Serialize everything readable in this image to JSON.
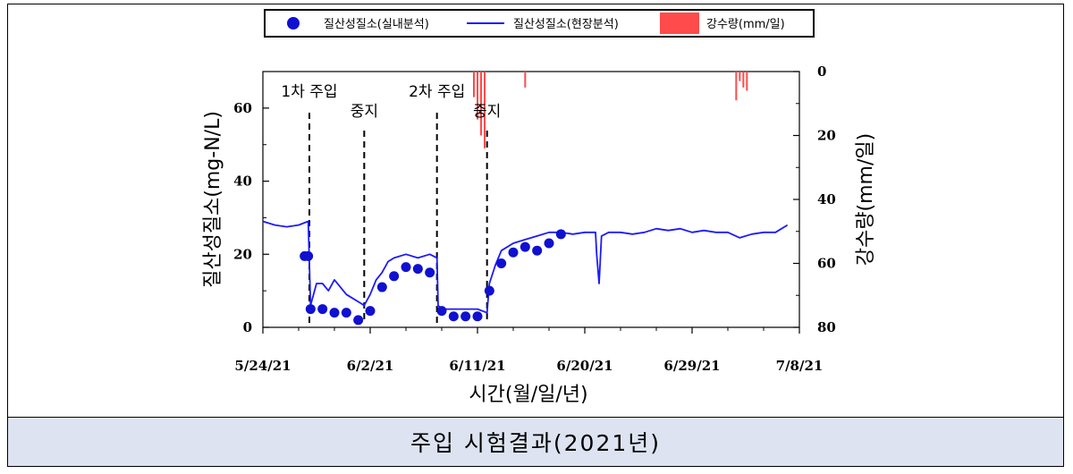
{
  "caption": "주입 시험결과(2021년)",
  "chart_data": {
    "type": "line",
    "xlabel": "시간(월/일/년)",
    "ylabel_left": "질산성질소(mg-N/L)",
    "ylabel_right": "강수량(mm/일)",
    "x_tick_labels": [
      "5/24/21",
      "6/2/21",
      "6/11/21",
      "6/20/21",
      "6/29/21",
      "7/8/21"
    ],
    "x_tick_days": [
      0,
      9,
      18,
      27,
      36,
      45
    ],
    "xlim_days": [
      0,
      45
    ],
    "ylim_left": [
      0,
      70
    ],
    "yticks_left": [
      "0",
      "20",
      "40",
      "60"
    ],
    "ylim_right": [
      0,
      80
    ],
    "yticks_right": [
      "0",
      "20",
      "40",
      "60",
      "80"
    ],
    "right_axis_inverted": true,
    "legend": {
      "placement": "top",
      "items": [
        {
          "label": "질산성질소(실내분석)",
          "marker": "circle",
          "color": "#1010d0"
        },
        {
          "label": "질산성질소(현장분석)",
          "marker": "line",
          "color": "#1a1aff"
        },
        {
          "label": "강수량(mm/일)",
          "marker": "bar",
          "color": "#ff4b4b"
        }
      ]
    },
    "annotations": [
      {
        "text": "1차 주입",
        "x_day": 3.9
      },
      {
        "text": "중지",
        "x_day": 8.5
      },
      {
        "text": "2차 주입",
        "x_day": 14.6
      },
      {
        "text": "중지",
        "x_day": 18.8
      }
    ],
    "series": [
      {
        "name": "질산성질소(실내분석)",
        "marker": "circle",
        "color": "#1010d0",
        "x_days": [
          3.5,
          3.8,
          4.0,
          5.0,
          6.0,
          7.0,
          8.0,
          9.0,
          10.0,
          11.0,
          12.0,
          13.0,
          14.0,
          15.0,
          16.0,
          17.0,
          18.0,
          19.0,
          20.0,
          21.0,
          22.0,
          23.0,
          24.0,
          25.0
        ],
        "y": [
          19.5,
          19.5,
          5.0,
          5.0,
          4.0,
          4.0,
          2.0,
          4.5,
          11.0,
          14.0,
          16.5,
          16.0,
          15.0,
          4.5,
          3.0,
          3.0,
          3.0,
          10.0,
          17.5,
          20.5,
          22.0,
          21.0,
          23.0,
          25.5
        ]
      },
      {
        "name": "질산성질소(현장분석)",
        "marker": "line",
        "color": "#1a1aff",
        "x_days": [
          0,
          1,
          2,
          3,
          3.8,
          4.0,
          4.5,
          5,
          5.5,
          6,
          6.5,
          7,
          7.5,
          8,
          8.5,
          9,
          9.5,
          10,
          10.5,
          11,
          12,
          13,
          14,
          14.6,
          14.7,
          15,
          16,
          17,
          18,
          18.8,
          19.0,
          19.5,
          20,
          21,
          22,
          23,
          24,
          25,
          26,
          27,
          27.9,
          28.0,
          28.2,
          28.4,
          29,
          30,
          31,
          32,
          33,
          34,
          35,
          36,
          37,
          38,
          39,
          40,
          41,
          42,
          43,
          44
        ],
        "y": [
          29,
          28,
          27.5,
          28,
          29,
          6,
          12,
          12,
          10,
          13,
          11,
          9,
          8,
          7,
          6,
          9,
          13,
          15,
          18,
          19,
          20,
          19,
          20,
          19,
          6,
          5,
          5,
          5,
          5,
          4,
          12,
          17,
          21,
          23,
          24,
          25,
          26,
          26,
          25.5,
          26,
          26,
          20,
          12,
          25,
          26,
          26,
          25.5,
          26,
          27,
          26.5,
          27,
          26,
          26.5,
          26,
          26,
          24.5,
          25.5,
          26,
          26,
          28
        ]
      },
      {
        "name": "강수량(mm/일)",
        "marker": "bar",
        "color": "#ff4b4b",
        "x_days": [
          17.7,
          18.0,
          18.3,
          18.6,
          22.0,
          39.7,
          40.0,
          40.3,
          40.6
        ],
        "y": [
          8,
          15,
          20,
          24,
          5,
          9,
          3,
          5,
          6
        ]
      }
    ]
  }
}
